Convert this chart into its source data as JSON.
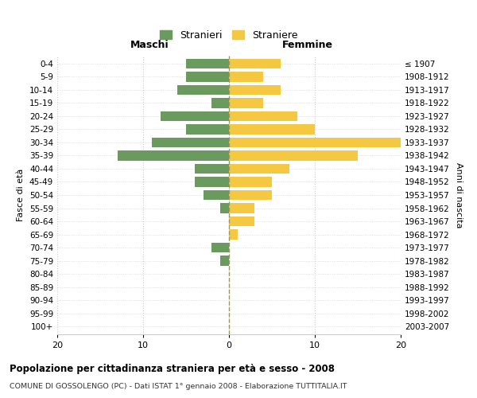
{
  "age_groups": [
    "0-4",
    "5-9",
    "10-14",
    "15-19",
    "20-24",
    "25-29",
    "30-34",
    "35-39",
    "40-44",
    "45-49",
    "50-54",
    "55-59",
    "60-64",
    "65-69",
    "70-74",
    "75-79",
    "80-84",
    "85-89",
    "90-94",
    "95-99",
    "100+"
  ],
  "birth_years": [
    "2003-2007",
    "1998-2002",
    "1993-1997",
    "1988-1992",
    "1983-1987",
    "1978-1982",
    "1973-1977",
    "1968-1972",
    "1963-1967",
    "1958-1962",
    "1953-1957",
    "1948-1952",
    "1943-1947",
    "1938-1942",
    "1933-1937",
    "1928-1932",
    "1923-1927",
    "1918-1922",
    "1913-1917",
    "1908-1912",
    "≤ 1907"
  ],
  "males": [
    5,
    5,
    6,
    2,
    8,
    5,
    9,
    13,
    4,
    4,
    3,
    1,
    0,
    0,
    2,
    1,
    0,
    0,
    0,
    0,
    0
  ],
  "females": [
    6,
    4,
    6,
    4,
    8,
    10,
    20,
    15,
    7,
    5,
    5,
    3,
    3,
    1,
    0,
    0,
    0,
    0,
    0,
    0,
    0
  ],
  "male_color": "#6a9a5e",
  "female_color": "#f5c842",
  "background_color": "#ffffff",
  "grid_color": "#cccccc",
  "dashed_line_color": "#999966",
  "xlim": [
    -20,
    20
  ],
  "title_main": "Popolazione per cittadinanza straniera per età e sesso - 2008",
  "title_sub": "COMUNE DI GOSSOLENGO (PC) - Dati ISTAT 1° gennaio 2008 - Elaborazione TUTTITALIA.IT",
  "xlabel_left": "Maschi",
  "xlabel_right": "Femmine",
  "ylabel_left": "Fasce di età",
  "ylabel_right": "Anni di nascita",
  "legend_male": "Stranieri",
  "legend_female": "Straniere",
  "xticks": [
    -20,
    -10,
    0,
    10,
    20
  ],
  "xtick_labels": [
    "20",
    "10",
    "0",
    "10",
    "20"
  ]
}
